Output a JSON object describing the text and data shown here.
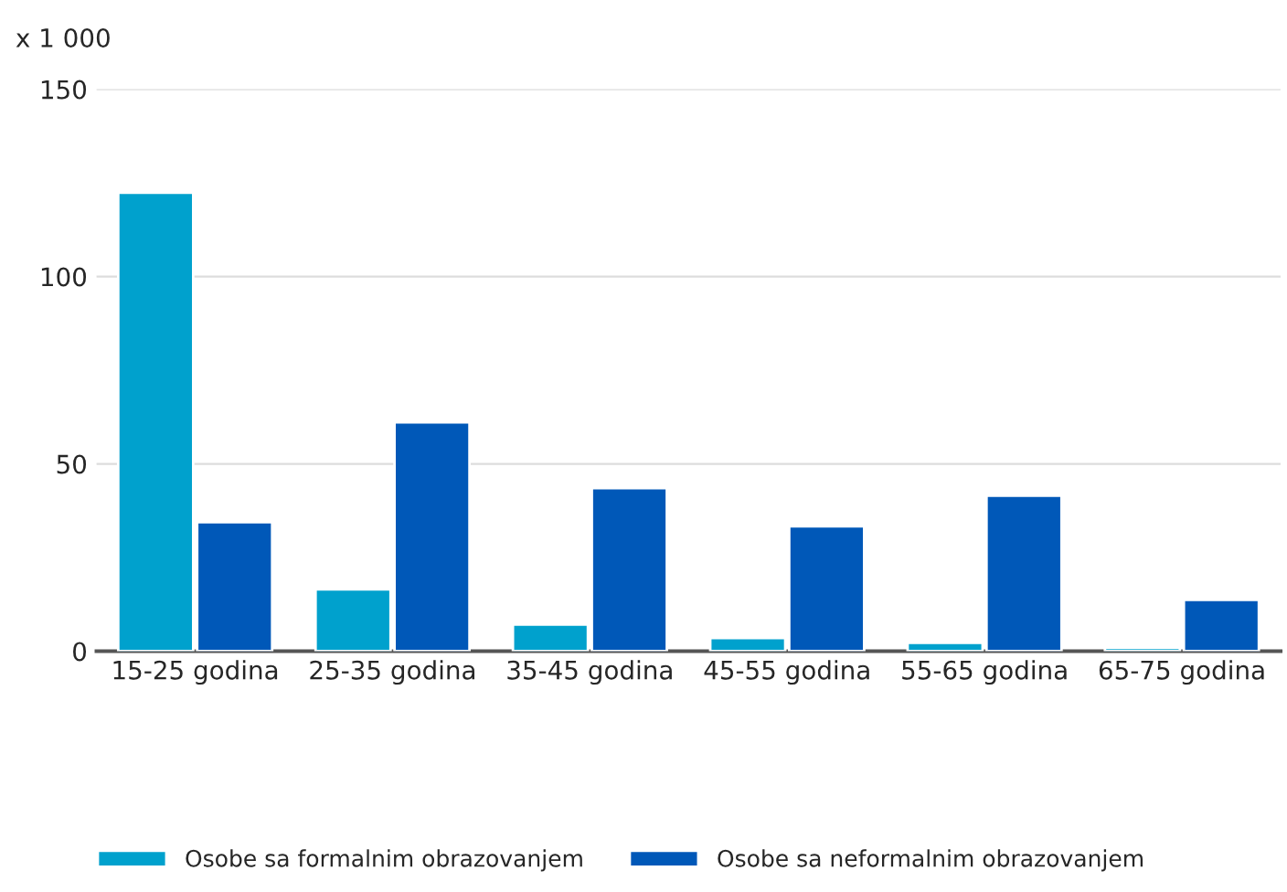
{
  "chart_data": {
    "type": "bar",
    "ylabel": "x 1 000",
    "categories": [
      "15-25 godina",
      "25-35 godina",
      "35-45 godina",
      "45-55 godina",
      "55-65 godina",
      "65-75 godina"
    ],
    "series": [
      {
        "name": "Osobe sa formalnim obrazovanjem",
        "color": "#00a1cd",
        "values": [
          122.4,
          16.5,
          7.1,
          3.5,
          2.2,
          0.9
        ]
      },
      {
        "name": "Osobe sa neformalnim obrazovanjem",
        "color": "#0058b8",
        "values": [
          34.4,
          61.1,
          43.5,
          33.3,
          41.5,
          13.7
        ]
      }
    ],
    "ylim": [
      0,
      150
    ],
    "yticks": [
      0,
      50,
      100,
      150
    ],
    "grid": "y",
    "legend": "bottom"
  }
}
